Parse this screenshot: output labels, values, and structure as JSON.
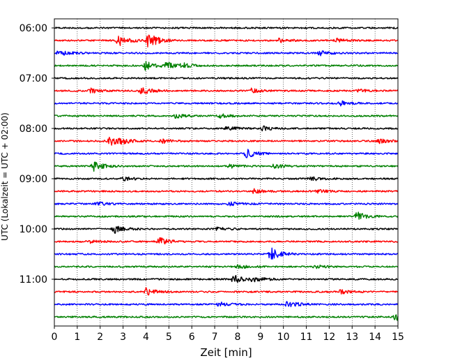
{
  "chart_data": {
    "type": "line",
    "title": "",
    "xlabel": "Zeit  [min]",
    "ylabel": "UTC (Lokalzeit = UTC + 02:00)",
    "xlim": [
      0,
      15
    ],
    "x_ticks": [
      0,
      1,
      2,
      3,
      4,
      5,
      6,
      7,
      8,
      9,
      10,
      11,
      12,
      13,
      14,
      15
    ],
    "x_tick_labels": [
      "0",
      "1",
      "2",
      "3",
      "4",
      "5",
      "6",
      "7",
      "8",
      "9",
      "10",
      "11",
      "12",
      "13",
      "14",
      "15"
    ],
    "y_tick_labels": [
      "06:00",
      "07:00",
      "08:00",
      "09:00",
      "10:00",
      "11:00"
    ],
    "y_tick_trace_index": [
      0,
      4,
      8,
      12,
      16,
      20
    ],
    "grid": "vertical dotted lines at each minute",
    "trace_interval_min": 15,
    "color_cycle": [
      "#000000",
      "#ff0000",
      "#0000ff",
      "#008000"
    ],
    "series": [
      {
        "start": "06:00",
        "bursts": []
      },
      {
        "start": "06:15",
        "bursts": [
          {
            "t": 2.8,
            "amp": 8
          },
          {
            "t": 4.1,
            "amp": 11
          },
          {
            "t": 9.8,
            "amp": 3
          },
          {
            "t": 12.3,
            "amp": 3
          }
        ]
      },
      {
        "start": "06:30",
        "bursts": [
          {
            "t": 0.2,
            "amp": 4
          },
          {
            "t": 11.6,
            "amp": 3
          }
        ]
      },
      {
        "start": "06:45",
        "bursts": [
          {
            "t": 4.0,
            "amp": 7
          },
          {
            "t": 4.9,
            "amp": 5
          },
          {
            "t": 5.6,
            "amp": 3
          }
        ]
      },
      {
        "start": "07:00",
        "bursts": []
      },
      {
        "start": "07:15",
        "bursts": [
          {
            "t": 1.6,
            "amp": 3
          },
          {
            "t": 3.8,
            "amp": 6
          },
          {
            "t": 8.6,
            "amp": 3
          },
          {
            "t": 13.3,
            "amp": 2
          }
        ]
      },
      {
        "start": "07:30",
        "bursts": [
          {
            "t": 12.5,
            "amp": 3
          }
        ]
      },
      {
        "start": "07:45",
        "bursts": [
          {
            "t": 5.3,
            "amp": 3
          },
          {
            "t": 7.2,
            "amp": 3
          }
        ]
      },
      {
        "start": "08:00",
        "bursts": [
          {
            "t": 7.5,
            "amp": 3
          },
          {
            "t": 9.1,
            "amp": 3
          }
        ]
      },
      {
        "start": "08:15",
        "bursts": [
          {
            "t": 2.4,
            "amp": 7
          },
          {
            "t": 2.9,
            "amp": 3
          },
          {
            "t": 4.7,
            "amp": 3
          },
          {
            "t": 14.2,
            "amp": 3
          }
        ]
      },
      {
        "start": "08:30",
        "bursts": [
          {
            "t": 8.4,
            "amp": 6
          }
        ]
      },
      {
        "start": "08:45",
        "bursts": [
          {
            "t": 1.7,
            "amp": 7
          },
          {
            "t": 7.6,
            "amp": 3
          },
          {
            "t": 9.6,
            "amp": 3
          }
        ]
      },
      {
        "start": "09:00",
        "bursts": [
          {
            "t": 3.0,
            "amp": 3
          },
          {
            "t": 11.2,
            "amp": 3
          }
        ]
      },
      {
        "start": "09:15",
        "bursts": [
          {
            "t": 8.7,
            "amp": 3
          },
          {
            "t": 11.5,
            "amp": 2
          }
        ]
      },
      {
        "start": "09:30",
        "bursts": [
          {
            "t": 1.8,
            "amp": 3
          },
          {
            "t": 7.6,
            "amp": 3
          }
        ]
      },
      {
        "start": "09:45",
        "bursts": [
          {
            "t": 13.2,
            "amp": 6
          }
        ]
      },
      {
        "start": "10:00",
        "bursts": [
          {
            "t": 2.6,
            "amp": 6
          },
          {
            "t": 7.1,
            "amp": 3
          }
        ]
      },
      {
        "start": "10:15",
        "bursts": [
          {
            "t": 4.6,
            "amp": 5
          },
          {
            "t": 1.5,
            "amp": 2
          }
        ]
      },
      {
        "start": "10:30",
        "bursts": [
          {
            "t": 9.4,
            "amp": 10
          }
        ]
      },
      {
        "start": "10:45",
        "bursts": [
          {
            "t": 8.0,
            "amp": 3
          },
          {
            "t": 11.4,
            "amp": 2
          }
        ]
      },
      {
        "start": "11:00",
        "bursts": [
          {
            "t": 7.8,
            "amp": 6
          },
          {
            "t": 8.7,
            "amp": 5
          }
        ]
      },
      {
        "start": "11:15",
        "bursts": [
          {
            "t": 4.0,
            "amp": 5
          },
          {
            "t": 12.5,
            "amp": 3
          }
        ]
      },
      {
        "start": "11:30",
        "bursts": [
          {
            "t": 7.2,
            "amp": 3
          },
          {
            "t": 10.2,
            "amp": 5
          }
        ]
      },
      {
        "start": "11:45",
        "bursts": [
          {
            "t": 14.9,
            "amp": 5
          }
        ]
      }
    ]
  }
}
